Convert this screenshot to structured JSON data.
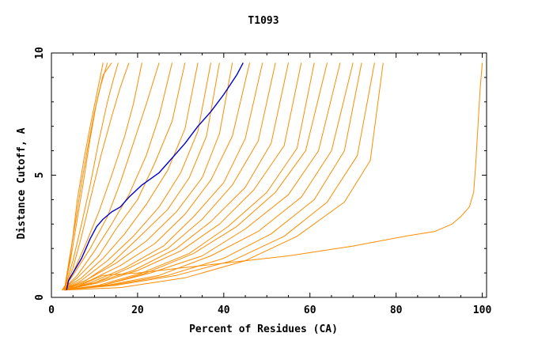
{
  "chart_data": {
    "type": "line",
    "title": "T1093",
    "xlabel": "Percent of Residues (CA)",
    "ylabel": "Distance Cutoff, A",
    "xlim": [
      0,
      101
    ],
    "ylim": [
      0,
      10
    ],
    "x_ticks": [
      0,
      20,
      40,
      60,
      80,
      100
    ],
    "x_tick_labels": [
      "0",
      "20",
      "40",
      "60",
      "80",
      "100"
    ],
    "y_ticks": [
      0,
      5,
      10
    ],
    "y_tick_labels": [
      "0",
      "5",
      "10"
    ],
    "grid": false,
    "legend": "none",
    "colors": {
      "others": "#ff8c00",
      "highlight": "#0000cc"
    },
    "highlight_series": {
      "points": [
        [
          3.5,
          0.3
        ],
        [
          4,
          0.7
        ],
        [
          5,
          1
        ],
        [
          6,
          1.3
        ],
        [
          7,
          1.6
        ],
        [
          8,
          2
        ],
        [
          9,
          2.4
        ],
        [
          10.5,
          2.9
        ],
        [
          12,
          3.2
        ],
        [
          14,
          3.5
        ],
        [
          16,
          3.7
        ],
        [
          18,
          4.1
        ],
        [
          21,
          4.6
        ],
        [
          25,
          5.1
        ],
        [
          28,
          5.7
        ],
        [
          31,
          6.3
        ],
        [
          34,
          7
        ],
        [
          37,
          7.6
        ],
        [
          40,
          8.3
        ],
        [
          43,
          9.1
        ],
        [
          44.5,
          9.6
        ]
      ]
    },
    "series": [
      {
        "points": [
          [
            3,
            0.3
          ],
          [
            4,
            1.2
          ],
          [
            5,
            2.5
          ],
          [
            6,
            4
          ],
          [
            7.5,
            5.6
          ],
          [
            9,
            7
          ],
          [
            10.5,
            8.3
          ],
          [
            12,
            9.6
          ]
        ]
      },
      {
        "points": [
          [
            3,
            0.3
          ],
          [
            4,
            1.4
          ],
          [
            5.5,
            3
          ],
          [
            7,
            4.7
          ],
          [
            8.5,
            6.2
          ],
          [
            10,
            7.6
          ],
          [
            11.5,
            8.7
          ],
          [
            13,
            9.6
          ]
        ]
      },
      {
        "points": [
          [
            3,
            0.3
          ],
          [
            4.5,
            1.6
          ],
          [
            6,
            3.2
          ],
          [
            7.5,
            4.8
          ],
          [
            9,
            6.5
          ],
          [
            10.5,
            8
          ],
          [
            12,
            9.1
          ],
          [
            14,
            9.6
          ]
        ]
      },
      {
        "points": [
          [
            3,
            0.3
          ],
          [
            5,
            1.5
          ],
          [
            7,
            3
          ],
          [
            9,
            4.6
          ],
          [
            11,
            6.4
          ],
          [
            13,
            8
          ],
          [
            14.5,
            9
          ],
          [
            15.5,
            9.6
          ]
        ]
      },
      {
        "points": [
          [
            3,
            0.3
          ],
          [
            5,
            1.2
          ],
          [
            7,
            2.5
          ],
          [
            9,
            4
          ],
          [
            11.5,
            5.8
          ],
          [
            14,
            7.4
          ],
          [
            16,
            8.6
          ],
          [
            18,
            9.6
          ]
        ]
      },
      {
        "points": [
          [
            2.5,
            0.3
          ],
          [
            5,
            1
          ],
          [
            8,
            2.2
          ],
          [
            11,
            3.5
          ],
          [
            14,
            5
          ],
          [
            17,
            6.6
          ],
          [
            19,
            7.9
          ],
          [
            21,
            9.6
          ]
        ]
      },
      {
        "points": [
          [
            2.5,
            0.3
          ],
          [
            5,
            0.9
          ],
          [
            9,
            2
          ],
          [
            13,
            3.3
          ],
          [
            16,
            4.7
          ],
          [
            19,
            6.3
          ],
          [
            22,
            7.9
          ],
          [
            25,
            9.6
          ]
        ]
      },
      {
        "points": [
          [
            2.5,
            0.3
          ],
          [
            6,
            0.9
          ],
          [
            10,
            1.9
          ],
          [
            14,
            3
          ],
          [
            18,
            4.2
          ],
          [
            22,
            5.8
          ],
          [
            25,
            7.4
          ],
          [
            28,
            9.6
          ]
        ]
      },
      {
        "points": [
          [
            2.5,
            0.3
          ],
          [
            6,
            0.8
          ],
          [
            11,
            1.7
          ],
          [
            15,
            2.8
          ],
          [
            20,
            4
          ],
          [
            24,
            5.5
          ],
          [
            28,
            7.2
          ],
          [
            31,
            9.6
          ]
        ]
      },
      {
        "points": [
          [
            2.5,
            0.3
          ],
          [
            7,
            0.8
          ],
          [
            12,
            1.6
          ],
          [
            17,
            2.6
          ],
          [
            22,
            3.8
          ],
          [
            27,
            5.2
          ],
          [
            31,
            6.9
          ],
          [
            34,
            9.6
          ]
        ]
      },
      {
        "points": [
          [
            2.5,
            0.3
          ],
          [
            7,
            0.7
          ],
          [
            13,
            1.5
          ],
          [
            19,
            2.5
          ],
          [
            25,
            3.7
          ],
          [
            30,
            5.1
          ],
          [
            34,
            6.8
          ],
          [
            37,
            9.6
          ]
        ]
      },
      {
        "points": [
          [
            2.5,
            0.3
          ],
          [
            8,
            0.7
          ],
          [
            14,
            1.4
          ],
          [
            20,
            2.4
          ],
          [
            27,
            3.6
          ],
          [
            32,
            4.9
          ],
          [
            36,
            6.6
          ],
          [
            39,
            9.6
          ]
        ]
      },
      {
        "points": [
          [
            3,
            0.3
          ],
          [
            8,
            0.7
          ],
          [
            15,
            1.4
          ],
          [
            22,
            2.3
          ],
          [
            29,
            3.5
          ],
          [
            35,
            4.9
          ],
          [
            39,
            6.7
          ],
          [
            42,
            9.6
          ]
        ]
      },
      {
        "points": [
          [
            3,
            0.3
          ],
          [
            9,
            0.7
          ],
          [
            16,
            1.3
          ],
          [
            24,
            2.2
          ],
          [
            31,
            3.4
          ],
          [
            37,
            4.8
          ],
          [
            42,
            6.6
          ],
          [
            46,
            9.6
          ]
        ]
      },
      {
        "points": [
          [
            3,
            0.3
          ],
          [
            9,
            0.6
          ],
          [
            17,
            1.2
          ],
          [
            26,
            2.1
          ],
          [
            33,
            3.3
          ],
          [
            40,
            4.7
          ],
          [
            45,
            6.5
          ],
          [
            49,
            9.6
          ]
        ]
      },
      {
        "points": [
          [
            3,
            0.3
          ],
          [
            10,
            0.6
          ],
          [
            18,
            1.2
          ],
          [
            27,
            2
          ],
          [
            35,
            3.2
          ],
          [
            42,
            4.6
          ],
          [
            48,
            6.4
          ],
          [
            52,
            9.6
          ]
        ]
      },
      {
        "points": [
          [
            3,
            0.3
          ],
          [
            10,
            0.6
          ],
          [
            19,
            1.1
          ],
          [
            29,
            2
          ],
          [
            37,
            3.1
          ],
          [
            45,
            4.5
          ],
          [
            51,
            6.3
          ],
          [
            55,
            9.6
          ]
        ]
      },
      {
        "points": [
          [
            3,
            0.3
          ],
          [
            11,
            0.6
          ],
          [
            20,
            1.1
          ],
          [
            30,
            1.9
          ],
          [
            39,
            3
          ],
          [
            47,
            4.4
          ],
          [
            54,
            6.2
          ],
          [
            58,
            9.6
          ]
        ]
      },
      {
        "points": [
          [
            3,
            0.3
          ],
          [
            11,
            0.5
          ],
          [
            21,
            1
          ],
          [
            32,
            1.8
          ],
          [
            41,
            2.9
          ],
          [
            50,
            4.3
          ],
          [
            57,
            6.1
          ],
          [
            61,
            9.6
          ]
        ]
      },
      {
        "points": [
          [
            3,
            0.3
          ],
          [
            12,
            0.5
          ],
          [
            22,
            1
          ],
          [
            33,
            1.8
          ],
          [
            43,
            2.9
          ],
          [
            52,
            4.3
          ],
          [
            59,
            6
          ],
          [
            64,
            9.6
          ]
        ]
      },
      {
        "points": [
          [
            3,
            0.3
          ],
          [
            12,
            0.5
          ],
          [
            23,
            1
          ],
          [
            35,
            1.7
          ],
          [
            45,
            2.8
          ],
          [
            55,
            4.2
          ],
          [
            62,
            6
          ],
          [
            67,
            9.6
          ]
        ]
      },
      {
        "points": [
          [
            3,
            0.3
          ],
          [
            13,
            0.5
          ],
          [
            25,
            0.9
          ],
          [
            37,
            1.7
          ],
          [
            48,
            2.7
          ],
          [
            58,
            4.1
          ],
          [
            65,
            6
          ],
          [
            70,
            9.6
          ]
        ]
      },
      {
        "points": [
          [
            3,
            0.3
          ],
          [
            14,
            0.5
          ],
          [
            27,
            0.9
          ],
          [
            40,
            1.6
          ],
          [
            51,
            2.6
          ],
          [
            61,
            4
          ],
          [
            68,
            6
          ],
          [
            72,
            9.6
          ]
        ]
      },
      {
        "points": [
          [
            3,
            0.3
          ],
          [
            15,
            0.5
          ],
          [
            29,
            0.9
          ],
          [
            42,
            1.5
          ],
          [
            54,
            2.5
          ],
          [
            64,
            3.9
          ],
          [
            71,
            5.8
          ],
          [
            75,
            9.6
          ]
        ]
      },
      {
        "points": [
          [
            3,
            0.3
          ],
          [
            16,
            0.4
          ],
          [
            31,
            0.8
          ],
          [
            45,
            1.5
          ],
          [
            57,
            2.5
          ],
          [
            68,
            3.9
          ],
          [
            74,
            5.6
          ],
          [
            77,
            9.6
          ]
        ]
      },
      {
        "points": [
          [
            4,
            0.3
          ],
          [
            12,
            0.9
          ],
          [
            20,
            1
          ],
          [
            30,
            1.2
          ],
          [
            40,
            1.4
          ],
          [
            55,
            1.7
          ],
          [
            70,
            2.1
          ],
          [
            82,
            2.5
          ],
          [
            89,
            2.7
          ],
          [
            93,
            3
          ],
          [
            95,
            3.3
          ],
          [
            97,
            3.7
          ],
          [
            98,
            4.3
          ],
          [
            98.5,
            5.5
          ],
          [
            99,
            7
          ],
          [
            99.5,
            8.5
          ],
          [
            100,
            9.6
          ]
        ]
      }
    ]
  }
}
